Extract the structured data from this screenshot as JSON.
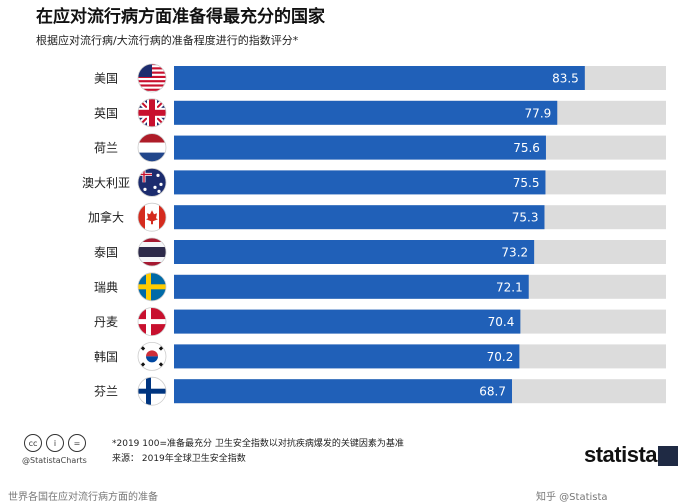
{
  "chart_data": {
    "type": "bar",
    "orientation": "horizontal",
    "title": "在应对流行病方面准备得最充分的国家",
    "subtitle": "根据应对流行病/大流行病的准备程度进行的指数评分*",
    "categories": [
      "美国",
      "英国",
      "荷兰",
      "澳大利亚",
      "加拿大",
      "泰国",
      "瑞典",
      "丹麦",
      "韩国",
      "芬兰"
    ],
    "values": [
      83.5,
      77.9,
      75.6,
      75.5,
      75.3,
      73.2,
      72.1,
      70.4,
      70.2,
      68.7
    ],
    "xlim": [
      0,
      100
    ],
    "bar_color": "#2060b8",
    "track_color": "#dcdcdc",
    "icons": [
      "flag-usa-icon",
      "flag-uk-icon",
      "flag-netherlands-icon",
      "flag-australia-icon",
      "flag-canada-icon",
      "flag-thailand-icon",
      "flag-sweden-icon",
      "flag-denmark-icon",
      "flag-korea-icon",
      "flag-finland-icon"
    ]
  },
  "footer": {
    "note": "*2019 100=准备最充分 卫生安全指数以对抗疾病爆发的关键因素为基准",
    "source": "来源：    2019年全球卫生安全指数",
    "handle": "@StatistaCharts",
    "brand": "statista",
    "cc_icons": [
      "cc-icon",
      "by-icon",
      "nd-icon"
    ]
  },
  "caption_left": "世界各国在应对流行病方面的准备",
  "caption_right": "知乎 @Statista"
}
